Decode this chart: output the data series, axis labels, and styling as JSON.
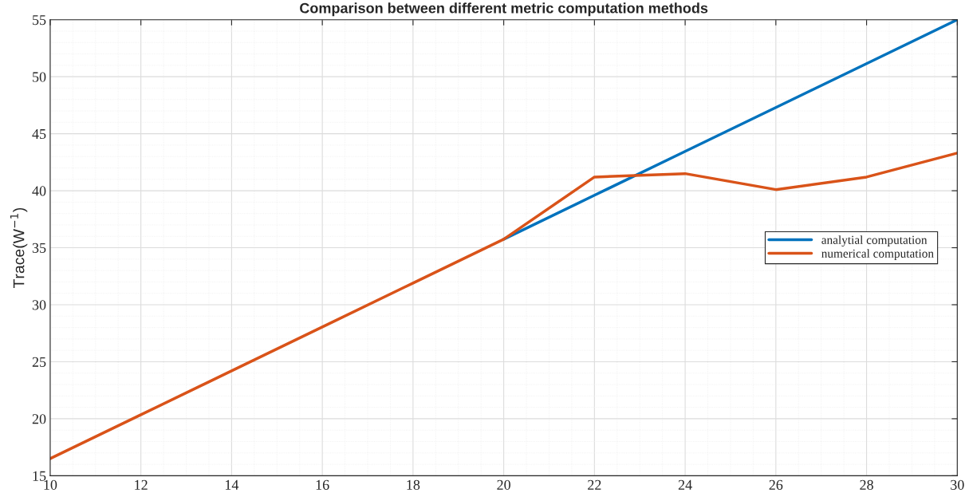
{
  "chart_data": {
    "type": "line",
    "title": "Comparison between different metric computation methods",
    "ylabel": "Trace(W$^{−1}$)",
    "x": [
      10,
      12,
      14,
      16,
      18,
      20,
      22,
      24,
      26,
      28,
      30
    ],
    "series": [
      {
        "name": "analytial computation",
        "color": "#0072bd",
        "values": [
          null,
          null,
          null,
          null,
          null,
          35.75,
          39.6,
          43.45,
          47.3,
          51.15,
          55
        ]
      },
      {
        "name": "numerical computation",
        "color": "#d95319",
        "values": [
          16.5,
          20.35,
          24.2,
          28.05,
          31.9,
          35.75,
          41.2,
          41.5,
          40.1,
          41.2,
          43.3
        ]
      }
    ],
    "xlim": [
      10,
      30
    ],
    "xticks": [
      10,
      12,
      14,
      16,
      18,
      20,
      22,
      24,
      26,
      28,
      30
    ],
    "ylim": [
      15,
      55
    ],
    "yticks": [
      15,
      20,
      25,
      30,
      35,
      40,
      45,
      50,
      55
    ],
    "grid": true,
    "legend": "right",
    "marker": "none",
    "line_style": "solid"
  }
}
